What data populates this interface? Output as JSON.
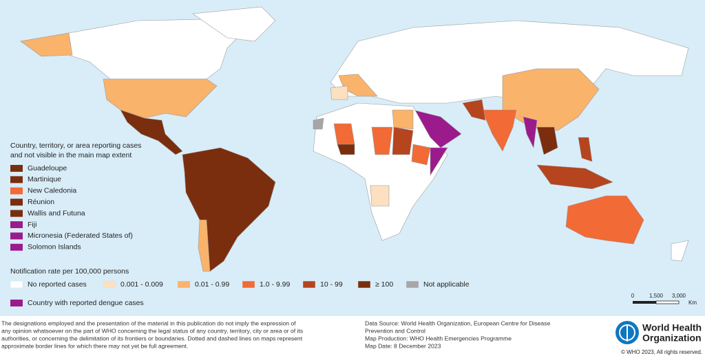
{
  "inset_legend": {
    "title": [
      "Country, territory, or area reporting cases",
      "and not visible in the main map extent"
    ],
    "items": [
      {
        "label": "Guadeloupe",
        "color": "#7a2e0e"
      },
      {
        "label": "Martinique",
        "color": "#7a2e0e"
      },
      {
        "label": "New Caledonia",
        "color": "#f26a35"
      },
      {
        "label": "Réunion",
        "color": "#7a2e0e"
      },
      {
        "label": "Wallis and Futuna",
        "color": "#7a2e0e"
      },
      {
        "label": "Fiji",
        "color": "#9b1b8c"
      },
      {
        "label": "Micronesia (Federated States of)",
        "color": "#9b1b8c"
      },
      {
        "label": "Solomon Islands",
        "color": "#9b1b8c"
      }
    ]
  },
  "rate_legend": {
    "title": "Notification rate per 100,000 persons",
    "items": [
      {
        "label": "No reported cases",
        "color": "#ffffff"
      },
      {
        "label": "0.001 - 0.009",
        "color": "#fce0c0"
      },
      {
        "label": "0.01 - 0.99",
        "color": "#f9b36b"
      },
      {
        "label": "1.0 - 9.99",
        "color": "#f26a35"
      },
      {
        "label": "10 - 99",
        "color": "#b5441f"
      },
      {
        "label": "≥ 100",
        "color": "#7a2e0e"
      },
      {
        "label": "Not applicable",
        "color": "#a6a6a6"
      }
    ],
    "dengue": {
      "label": "Country with reported dengue cases",
      "color": "#9b1b8c"
    }
  },
  "scale_bar": {
    "labels": [
      "0",
      "1,500",
      "3,000"
    ],
    "unit": "Km"
  },
  "disclaimer": [
    "The designations employed and the presentation of the material in this publication do not imply the expression of",
    "any opinion whatsoever on the part of WHO concerning the legal status of any country, territory, city or area or of its",
    "authorities, or concerning the delimitation of its frontiers or boundaries. Dotted and dashed lines on maps represent",
    "approximate border lines for which there may not yet be full agreement."
  ],
  "credits": [
    "Data Source: World Health Organization, European Centre for Disease",
    "Prevention and Control",
    "Map Production: WHO Health Emergencies Programme",
    "Map Date:  8 December 2023"
  ],
  "logo": [
    "World Health",
    "Organization"
  ],
  "copyright": "© WHO 2023, All rights reserved."
}
